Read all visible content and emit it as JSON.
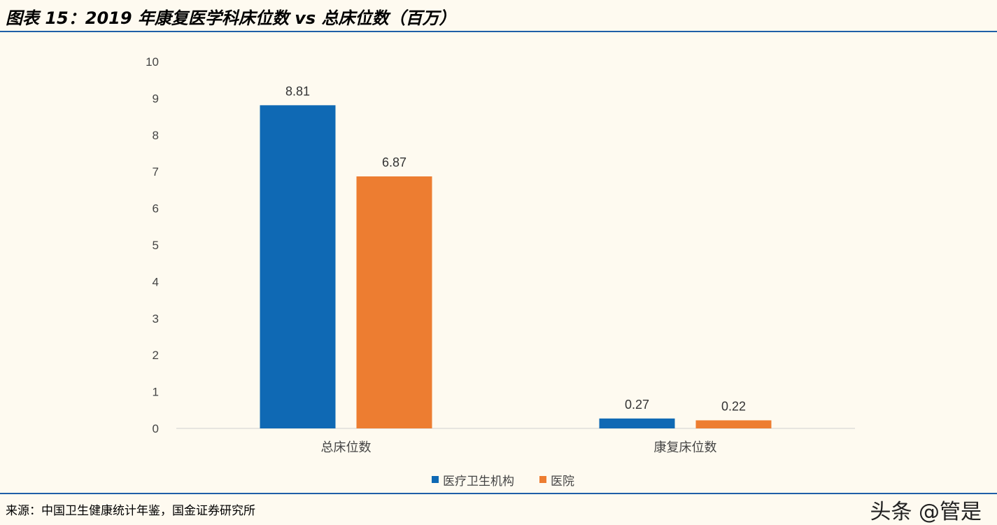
{
  "header": {
    "title": "图表 15：2019 年康复医学科床位数 vs 总床位数（百万）"
  },
  "footer": {
    "source": "来源：中国卫生健康统计年鉴，国金证券研究所",
    "watermark": "头条 @管是"
  },
  "chart_data": {
    "type": "bar",
    "title": "",
    "xlabel": "",
    "ylabel": "",
    "categories": [
      "总床位数",
      "康复床位数"
    ],
    "series": [
      {
        "name": "医疗卫生机构",
        "values": [
          8.81,
          0.27
        ],
        "color": "#0f69b4"
      },
      {
        "name": "医院",
        "values": [
          6.87,
          0.22
        ],
        "color": "#ed7d31"
      }
    ],
    "data_labels": [
      [
        "8.81",
        "0.27"
      ],
      [
        "6.87",
        "0.22"
      ]
    ],
    "ylim": [
      0,
      10
    ],
    "yticks": [
      "0",
      "1",
      "2",
      "3",
      "4",
      "5",
      "6",
      "7",
      "8",
      "9",
      "10"
    ],
    "grid": false,
    "legend_position": "bottom"
  }
}
